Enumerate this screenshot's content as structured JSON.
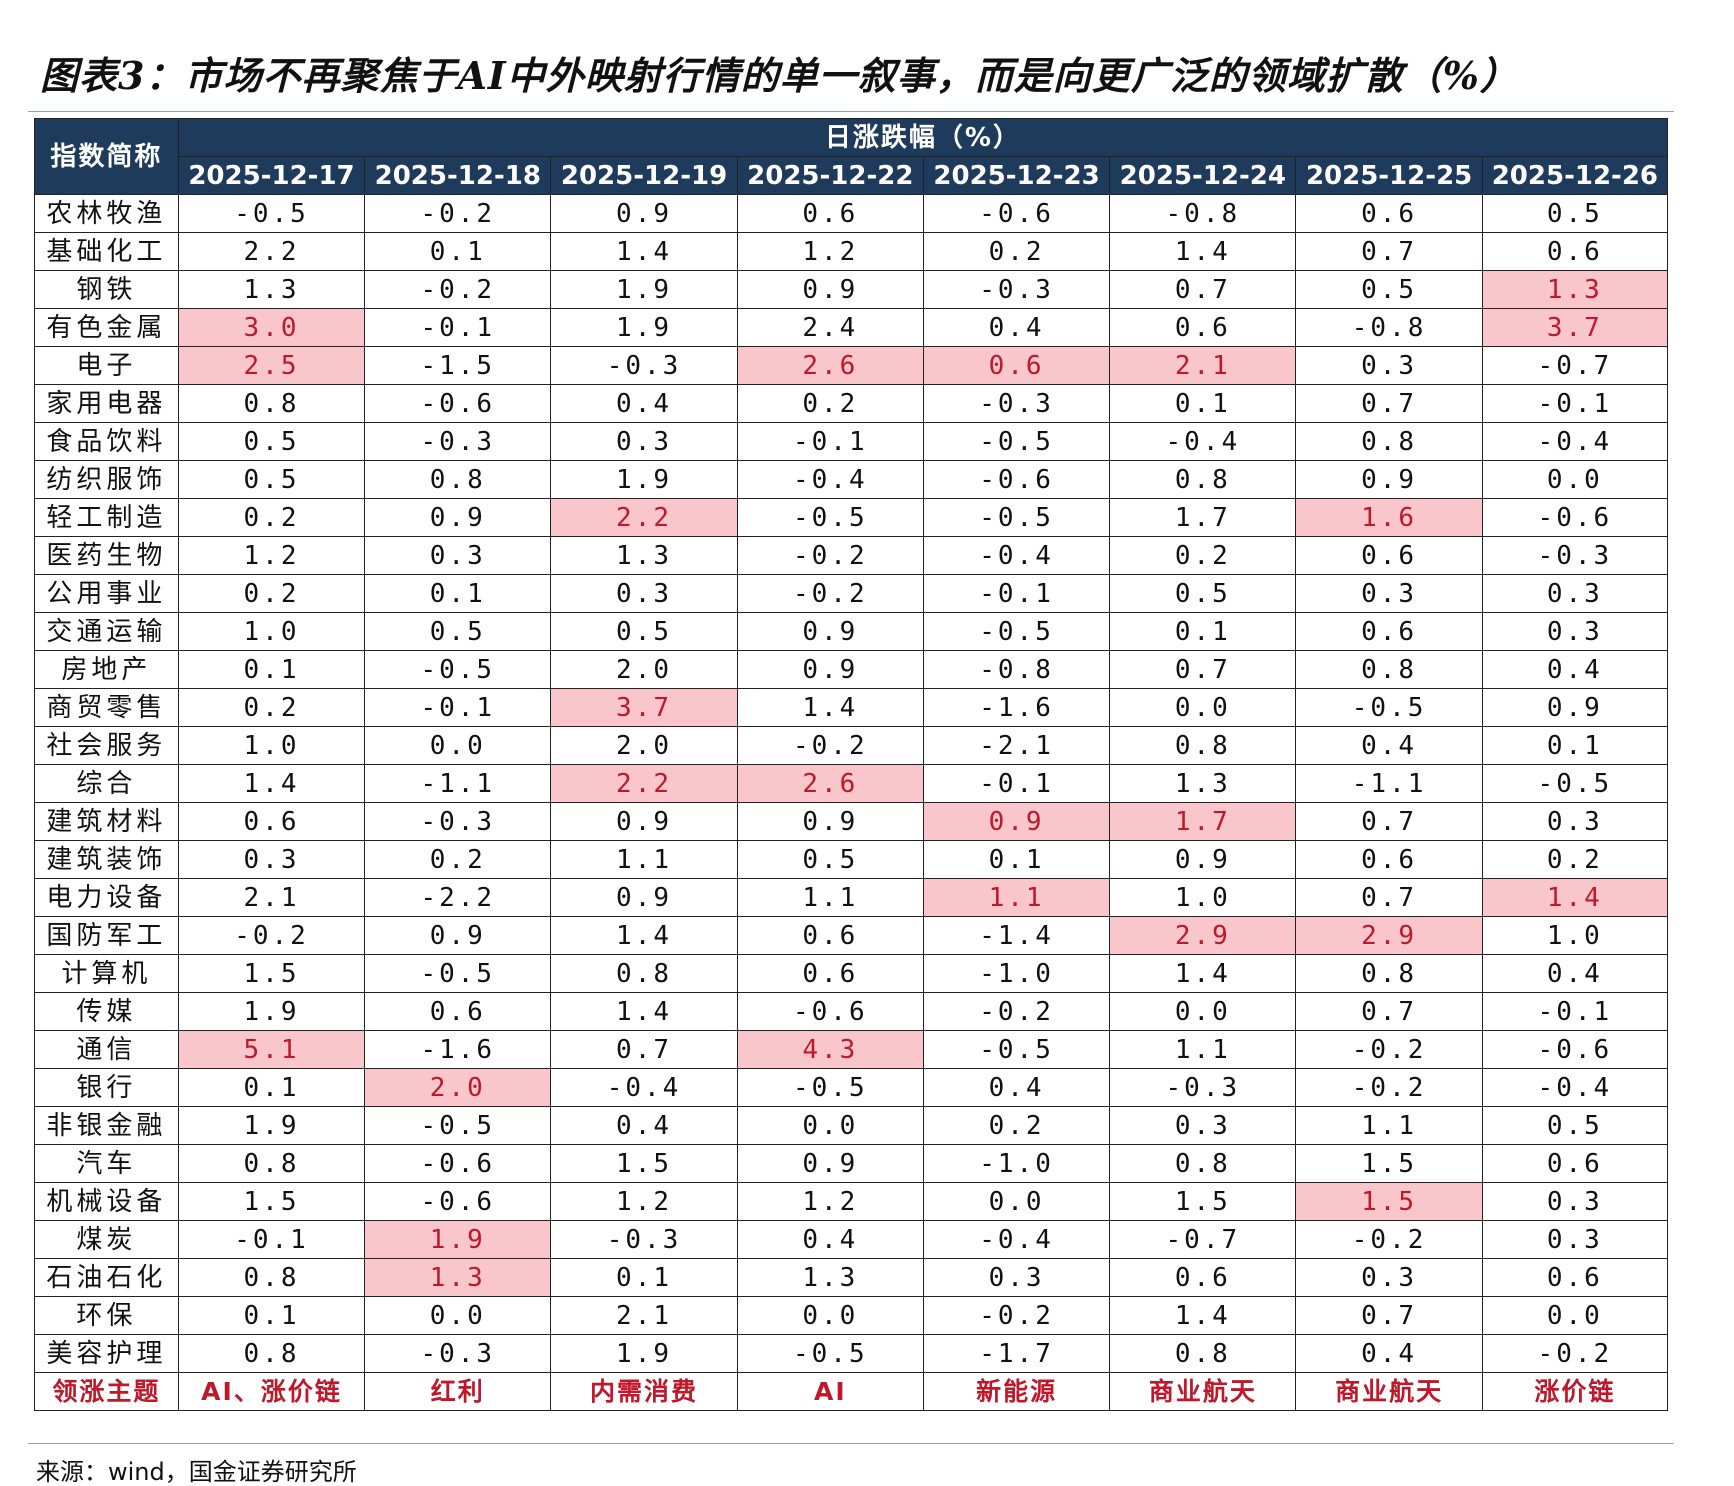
{
  "title": "图表3：市场不再聚焦于AI中外映射行情的单一叙事，而是向更广泛的领域扩散（%）",
  "table": {
    "name_header": "指数简称",
    "group_header": "日涨跌幅（%）",
    "dates": [
      "2025-12-17",
      "2025-12-18",
      "2025-12-19",
      "2025-12-22",
      "2025-12-23",
      "2025-12-24",
      "2025-12-25",
      "2025-12-26"
    ],
    "rows": [
      {
        "name": "农林牧渔",
        "values": [
          "-0.5",
          "-0.2",
          "0.9",
          "0.6",
          "-0.6",
          "-0.8",
          "0.6",
          "0.5"
        ],
        "highlight": []
      },
      {
        "name": "基础化工",
        "values": [
          "2.2",
          "0.1",
          "1.4",
          "1.2",
          "0.2",
          "1.4",
          "0.7",
          "0.6"
        ],
        "highlight": []
      },
      {
        "name": "钢铁",
        "values": [
          "1.3",
          "-0.2",
          "1.9",
          "0.9",
          "-0.3",
          "0.7",
          "0.5",
          "1.3"
        ],
        "highlight": [
          7
        ]
      },
      {
        "name": "有色金属",
        "values": [
          "3.0",
          "-0.1",
          "1.9",
          "2.4",
          "0.4",
          "0.6",
          "-0.8",
          "3.7"
        ],
        "highlight": [
          0,
          7
        ]
      },
      {
        "name": "电子",
        "values": [
          "2.5",
          "-1.5",
          "-0.3",
          "2.6",
          "0.6",
          "2.1",
          "0.3",
          "-0.7"
        ],
        "highlight": [
          0,
          3,
          4,
          5
        ]
      },
      {
        "name": "家用电器",
        "values": [
          "0.8",
          "-0.6",
          "0.4",
          "0.2",
          "-0.3",
          "0.1",
          "0.7",
          "-0.1"
        ],
        "highlight": []
      },
      {
        "name": "食品饮料",
        "values": [
          "0.5",
          "-0.3",
          "0.3",
          "-0.1",
          "-0.5",
          "-0.4",
          "0.8",
          "-0.4"
        ],
        "highlight": []
      },
      {
        "name": "纺织服饰",
        "values": [
          "0.5",
          "0.8",
          "1.9",
          "-0.4",
          "-0.6",
          "0.8",
          "0.9",
          "0.0"
        ],
        "highlight": []
      },
      {
        "name": "轻工制造",
        "values": [
          "0.2",
          "0.9",
          "2.2",
          "-0.5",
          "-0.5",
          "1.7",
          "1.6",
          "-0.6"
        ],
        "highlight": [
          2,
          6
        ]
      },
      {
        "name": "医药生物",
        "values": [
          "1.2",
          "0.3",
          "1.3",
          "-0.2",
          "-0.4",
          "0.2",
          "0.6",
          "-0.3"
        ],
        "highlight": []
      },
      {
        "name": "公用事业",
        "values": [
          "0.2",
          "0.1",
          "0.3",
          "-0.2",
          "-0.1",
          "0.5",
          "0.3",
          "0.3"
        ],
        "highlight": []
      },
      {
        "name": "交通运输",
        "values": [
          "1.0",
          "0.5",
          "0.5",
          "0.9",
          "-0.5",
          "0.1",
          "0.6",
          "0.3"
        ],
        "highlight": []
      },
      {
        "name": "房地产",
        "values": [
          "0.1",
          "-0.5",
          "2.0",
          "0.9",
          "-0.8",
          "0.7",
          "0.8",
          "0.4"
        ],
        "highlight": []
      },
      {
        "name": "商贸零售",
        "values": [
          "0.2",
          "-0.1",
          "3.7",
          "1.4",
          "-1.6",
          "0.0",
          "-0.5",
          "0.9"
        ],
        "highlight": [
          2
        ]
      },
      {
        "name": "社会服务",
        "values": [
          "1.0",
          "0.0",
          "2.0",
          "-0.2",
          "-2.1",
          "0.8",
          "0.4",
          "0.1"
        ],
        "highlight": []
      },
      {
        "name": "综合",
        "values": [
          "1.4",
          "-1.1",
          "2.2",
          "2.6",
          "-0.1",
          "1.3",
          "-1.1",
          "-0.5"
        ],
        "highlight": [
          2,
          3
        ]
      },
      {
        "name": "建筑材料",
        "values": [
          "0.6",
          "-0.3",
          "0.9",
          "0.9",
          "0.9",
          "1.7",
          "0.7",
          "0.3"
        ],
        "highlight": [
          4,
          5
        ]
      },
      {
        "name": "建筑装饰",
        "values": [
          "0.3",
          "0.2",
          "1.1",
          "0.5",
          "0.1",
          "0.9",
          "0.6",
          "0.2"
        ],
        "highlight": []
      },
      {
        "name": "电力设备",
        "values": [
          "2.1",
          "-2.2",
          "0.9",
          "1.1",
          "1.1",
          "1.0",
          "0.7",
          "1.4"
        ],
        "highlight": [
          4,
          7
        ]
      },
      {
        "name": "国防军工",
        "values": [
          "-0.2",
          "0.9",
          "1.4",
          "0.6",
          "-1.4",
          "2.9",
          "2.9",
          "1.0"
        ],
        "highlight": [
          5,
          6
        ]
      },
      {
        "name": "计算机",
        "values": [
          "1.5",
          "-0.5",
          "0.8",
          "0.6",
          "-1.0",
          "1.4",
          "0.8",
          "0.4"
        ],
        "highlight": []
      },
      {
        "name": "传媒",
        "values": [
          "1.9",
          "0.6",
          "1.4",
          "-0.6",
          "-0.2",
          "0.0",
          "0.7",
          "-0.1"
        ],
        "highlight": []
      },
      {
        "name": "通信",
        "values": [
          "5.1",
          "-1.6",
          "0.7",
          "4.3",
          "-0.5",
          "1.1",
          "-0.2",
          "-0.6"
        ],
        "highlight": [
          0,
          3
        ]
      },
      {
        "name": "银行",
        "values": [
          "0.1",
          "2.0",
          "-0.4",
          "-0.5",
          "0.4",
          "-0.3",
          "-0.2",
          "-0.4"
        ],
        "highlight": [
          1
        ]
      },
      {
        "name": "非银金融",
        "values": [
          "1.9",
          "-0.5",
          "0.4",
          "0.0",
          "0.2",
          "0.3",
          "1.1",
          "0.5"
        ],
        "highlight": []
      },
      {
        "name": "汽车",
        "values": [
          "0.8",
          "-0.6",
          "1.5",
          "0.9",
          "-1.0",
          "0.8",
          "1.5",
          "0.6"
        ],
        "highlight": []
      },
      {
        "name": "机械设备",
        "values": [
          "1.5",
          "-0.6",
          "1.2",
          "1.2",
          "0.0",
          "1.5",
          "1.5",
          "0.3"
        ],
        "highlight": [
          6
        ]
      },
      {
        "name": "煤炭",
        "values": [
          "-0.1",
          "1.9",
          "-0.3",
          "0.4",
          "-0.4",
          "-0.7",
          "-0.2",
          "0.3"
        ],
        "highlight": [
          1
        ]
      },
      {
        "name": "石油石化",
        "values": [
          "0.8",
          "1.3",
          "0.1",
          "1.3",
          "0.3",
          "0.6",
          "0.3",
          "0.6"
        ],
        "highlight": [
          1
        ]
      },
      {
        "name": "环保",
        "values": [
          "0.1",
          "0.0",
          "2.1",
          "0.0",
          "-0.2",
          "1.4",
          "0.7",
          "0.0"
        ],
        "highlight": []
      },
      {
        "name": "美容护理",
        "values": [
          "0.8",
          "-0.3",
          "1.9",
          "-0.5",
          "-1.7",
          "0.8",
          "0.4",
          "-0.2"
        ],
        "highlight": []
      }
    ],
    "lead_row": {
      "name": "领涨主题",
      "values": [
        "AI、涨价链",
        "红利",
        "内需消费",
        "AI",
        "新能源",
        "商业航天",
        "商业航天",
        "涨价链"
      ]
    }
  },
  "source": "来源：wind，国金证券研究所",
  "colors": {
    "header_bg": "#1f3b5c",
    "highlight_bg": "#f9c6cc",
    "highlight_text": "#c0182a"
  }
}
